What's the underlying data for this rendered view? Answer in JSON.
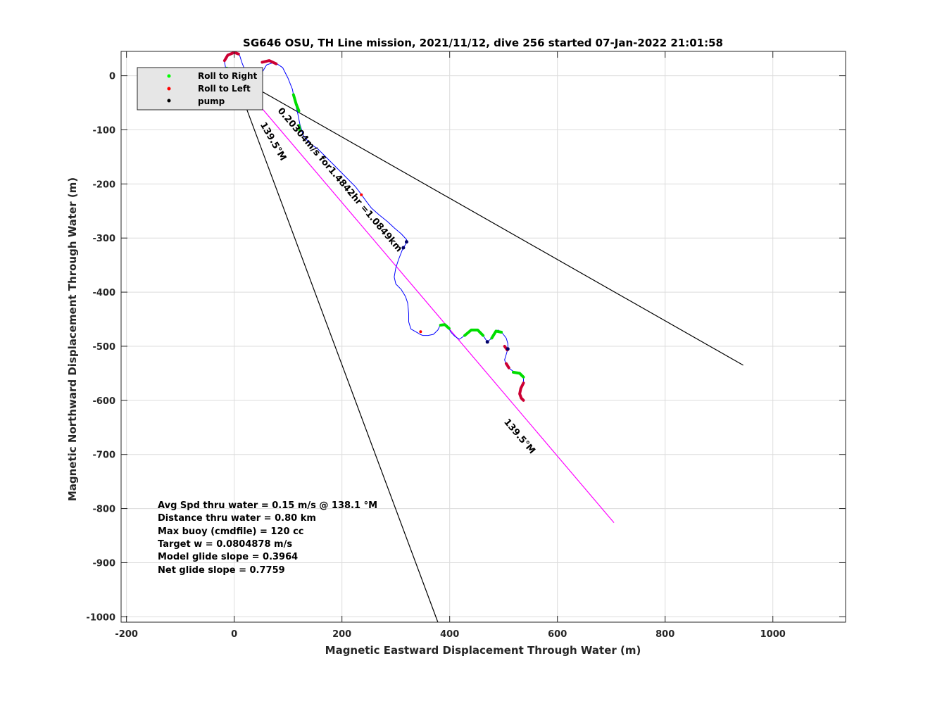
{
  "chart_data": {
    "type": "line",
    "title": "SG646 OSU, TH Line mission, 2021/11/12, dive 256 started 07-Jan-2022 21:01:58",
    "xlabel": "Magnetic Eastward Displacement Through Water (m)",
    "ylabel": "Magnetic Northward Displacement Through Water (m)",
    "xlim": [
      -210,
      1135
    ],
    "ylim": [
      -1010,
      45
    ],
    "xticks": [
      -200,
      0,
      200,
      400,
      600,
      800,
      1000
    ],
    "yticks": [
      -1000,
      -900,
      -800,
      -700,
      -600,
      -500,
      -400,
      -300,
      -200,
      -100,
      0
    ],
    "grid": true,
    "legend": {
      "position": "top-left",
      "entries": [
        {
          "label": "Roll to Right",
          "color": "#00ff00"
        },
        {
          "label": "Roll to Left",
          "color": "#ff0000"
        },
        {
          "label": "pump",
          "color": "#000000"
        }
      ]
    },
    "track": {
      "color": "#0000ff",
      "points": [
        [
          -15,
          10
        ],
        [
          -18,
          25
        ],
        [
          -12,
          38
        ],
        [
          0,
          43
        ],
        [
          10,
          38
        ],
        [
          14,
          25
        ],
        [
          22,
          5
        ],
        [
          35,
          0
        ],
        [
          50,
          3
        ],
        [
          60,
          20
        ],
        [
          75,
          25
        ],
        [
          90,
          15
        ],
        [
          100,
          -5
        ],
        [
          108,
          -25
        ],
        [
          112,
          -45
        ],
        [
          118,
          -70
        ],
        [
          122,
          -90
        ],
        [
          128,
          -110
        ],
        [
          140,
          -125
        ],
        [
          155,
          -135
        ],
        [
          170,
          -150
        ],
        [
          185,
          -165
        ],
        [
          200,
          -180
        ],
        [
          215,
          -195
        ],
        [
          225,
          -205
        ],
        [
          235,
          -218
        ],
        [
          245,
          -232
        ],
        [
          255,
          -245
        ],
        [
          270,
          -258
        ],
        [
          285,
          -270
        ],
        [
          298,
          -282
        ],
        [
          310,
          -292
        ],
        [
          320,
          -303
        ],
        [
          318,
          -312
        ],
        [
          312,
          -322
        ],
        [
          305,
          -340
        ],
        [
          300,
          -355
        ],
        [
          297,
          -372
        ],
        [
          300,
          -385
        ],
        [
          310,
          -395
        ],
        [
          318,
          -408
        ],
        [
          322,
          -420
        ],
        [
          324,
          -440
        ],
        [
          324,
          -455
        ],
        [
          328,
          -468
        ],
        [
          340,
          -475
        ],
        [
          345,
          -478
        ],
        [
          350,
          -480
        ],
        [
          360,
          -480
        ],
        [
          370,
          -478
        ],
        [
          378,
          -470
        ],
        [
          382,
          -462
        ],
        [
          390,
          -460
        ],
        [
          397,
          -465
        ],
        [
          403,
          -475
        ],
        [
          410,
          -482
        ],
        [
          418,
          -487
        ],
        [
          428,
          -480
        ],
        [
          440,
          -470
        ],
        [
          452,
          -470
        ],
        [
          462,
          -480
        ],
        [
          470,
          -492
        ],
        [
          478,
          -485
        ],
        [
          483,
          -475
        ],
        [
          490,
          -470
        ],
        [
          498,
          -476
        ],
        [
          505,
          -485
        ],
        [
          508,
          -495
        ],
        [
          508,
          -505
        ],
        [
          505,
          -515
        ],
        [
          502,
          -525
        ],
        [
          505,
          -535
        ],
        [
          512,
          -542
        ],
        [
          520,
          -548
        ],
        [
          530,
          -550
        ],
        [
          537,
          -555
        ],
        [
          537,
          -565
        ],
        [
          532,
          -575
        ],
        [
          530,
          -585
        ],
        [
          533,
          -595
        ],
        [
          537,
          -600
        ]
      ]
    },
    "roll_right_segments": [
      [
        [
          -14,
          14
        ],
        [
          -8,
          2
        ],
        [
          0,
          -2
        ]
      ],
      [
        [
          110,
          -35
        ],
        [
          115,
          -52
        ],
        [
          120,
          -65
        ]
      ],
      [
        [
          120,
          -92
        ],
        [
          122,
          -102
        ]
      ],
      [
        [
          383,
          -461
        ],
        [
          391,
          -460
        ],
        [
          399,
          -467
        ]
      ],
      [
        [
          428,
          -480
        ],
        [
          440,
          -470
        ],
        [
          452,
          -470
        ],
        [
          462,
          -480
        ]
      ],
      [
        [
          478,
          -485
        ],
        [
          486,
          -472
        ],
        [
          496,
          -474
        ]
      ],
      [
        [
          518,
          -548
        ],
        [
          530,
          -550
        ],
        [
          537,
          -557
        ]
      ]
    ],
    "roll_left_segments": [
      [
        [
          -18,
          28
        ],
        [
          -12,
          38
        ],
        [
          0,
          43
        ],
        [
          8,
          40
        ]
      ],
      [
        [
          52,
          25
        ],
        [
          65,
          28
        ],
        [
          78,
          22
        ]
      ],
      [
        [
          502,
          -500
        ],
        [
          507,
          -507
        ]
      ],
      [
        [
          505,
          -532
        ],
        [
          510,
          -540
        ]
      ],
      [
        [
          537,
          -568
        ],
        [
          532,
          -578
        ],
        [
          530,
          -588
        ],
        [
          533,
          -596
        ],
        [
          537,
          -600
        ]
      ]
    ],
    "pump_points": [
      [
        320,
        -307
      ],
      [
        314,
        -318
      ],
      [
        470,
        -492
      ],
      [
        508,
        -505
      ]
    ],
    "red_dots": [
      [
        236,
        -220
      ],
      [
        346,
        -473
      ]
    ],
    "lines": [
      {
        "name": "heading",
        "color": "#ff00ff",
        "points": [
          [
            0,
            0
          ],
          [
            705,
            -826
          ]
        ]
      },
      {
        "name": "heading2",
        "color": "#000000",
        "points": [
          [
            0,
            0
          ],
          [
            705,
            -826
          ]
        ]
      },
      {
        "name": "line-a",
        "color": "#000000",
        "points": [
          [
            0,
            0
          ],
          [
            945,
            -535
          ]
        ]
      },
      {
        "name": "line-b",
        "color": "#000000",
        "points": [
          [
            0,
            0
          ],
          [
            378,
            -1010
          ]
        ]
      }
    ],
    "annotations": [
      {
        "text": "0.20304m/s for1.4842hr =1.0849km",
        "x": 80,
        "y": -65,
        "angle": 49.5
      },
      {
        "text": "139.5°M",
        "x": 48,
        "y": -90,
        "angle": 60
      },
      {
        "text": "139.5°M",
        "x": 500,
        "y": -640,
        "angle": 49.5
      }
    ],
    "stats": [
      "Avg Spd thru water  =  0.15 m/s @ 138.1 °M",
      "Distance thru water =  0.80 km",
      "Max buoy (cmdfile)  = 120 cc",
      "Target w                    = 0.0804878 m/s",
      "Model glide slope    = 0.3964",
      "Net glide slope         = 0.7759"
    ]
  }
}
